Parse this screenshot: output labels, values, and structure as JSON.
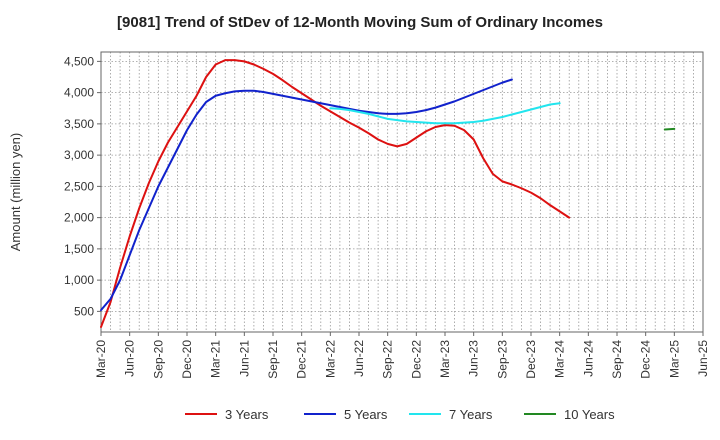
{
  "chart_data": {
    "type": "line",
    "title": "[9081]  Trend of StDev of 12-Month Moving Sum of Ordinary Incomes",
    "ylabel": "Amount (million yen)",
    "xlabel": "",
    "ylim": [
      170,
      4650
    ],
    "yticks": [
      500,
      1000,
      1500,
      2000,
      2500,
      3000,
      3500,
      4000,
      4500
    ],
    "ytick_labels": [
      "500",
      "1,000",
      "1,500",
      "2,000",
      "2,500",
      "3,000",
      "3,500",
      "4,000",
      "4,500"
    ],
    "xticks": [
      "Mar-20",
      "Jun-20",
      "Sep-20",
      "Dec-20",
      "Mar-21",
      "Jun-21",
      "Sep-21",
      "Dec-21",
      "Mar-22",
      "Jun-22",
      "Sep-22",
      "Dec-22",
      "Mar-23",
      "Jun-23",
      "Sep-23",
      "Dec-23",
      "Mar-24",
      "Jun-24",
      "Sep-24",
      "Dec-24",
      "Mar-25",
      "Jun-25"
    ],
    "grid": true,
    "legend_position": "bottom",
    "series": [
      {
        "name": "3 Years",
        "color": "#dd1111",
        "start_index": 0,
        "values": [
          250,
          650,
          1200,
          1700,
          2150,
          2550,
          2900,
          3200,
          3450,
          3700,
          3950,
          4250,
          4450,
          4520,
          4520,
          4500,
          4450,
          4380,
          4300,
          4200,
          4090,
          3990,
          3890,
          3790,
          3700,
          3610,
          3520,
          3440,
          3350,
          3250,
          3180,
          3140,
          3180,
          3280,
          3380,
          3450,
          3480,
          3470,
          3400,
          3250,
          2950,
          2700,
          2580,
          2530,
          2470,
          2400,
          2310,
          2200,
          2100,
          2000
        ]
      },
      {
        "name": "5 Years",
        "color": "#1122cc",
        "start_index": 0,
        "values": [
          520,
          700,
          1000,
          1400,
          1800,
          2150,
          2500,
          2800,
          3100,
          3400,
          3650,
          3850,
          3950,
          3990,
          4020,
          4030,
          4030,
          4010,
          3980,
          3950,
          3920,
          3890,
          3860,
          3830,
          3800,
          3770,
          3740,
          3710,
          3690,
          3670,
          3660,
          3660,
          3670,
          3690,
          3720,
          3760,
          3810,
          3860,
          3920,
          3980,
          4040,
          4100,
          4160,
          4210
        ]
      },
      {
        "name": "7 Years",
        "color": "#22e5ee",
        "start_index": 24,
        "values": [
          3750,
          3740,
          3720,
          3690,
          3660,
          3620,
          3580,
          3560,
          3540,
          3530,
          3520,
          3510,
          3510,
          3510,
          3520,
          3530,
          3550,
          3580,
          3610,
          3650,
          3690,
          3730,
          3770,
          3810,
          3830
        ]
      },
      {
        "name": "10 Years",
        "color": "#228822",
        "start_index": 59,
        "values": [
          3410,
          3420
        ]
      }
    ]
  }
}
